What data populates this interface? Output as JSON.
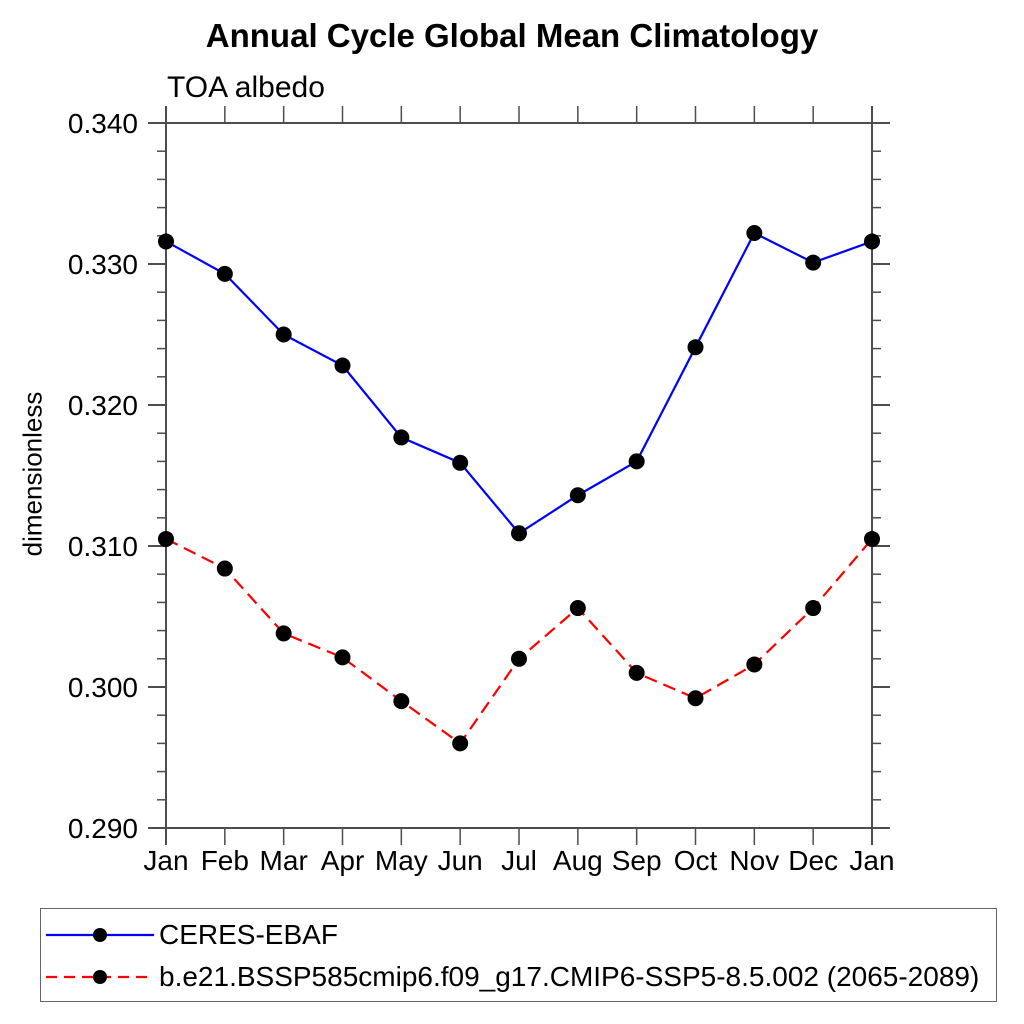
{
  "chart_data": {
    "type": "line",
    "title": "Annual Cycle Global Mean Climatology",
    "subtitle": "TOA albedo",
    "ylabel": "dimensionless",
    "xlabel": "",
    "categories": [
      "Jan",
      "Feb",
      "Mar",
      "Apr",
      "May",
      "Jun",
      "Jul",
      "Aug",
      "Sep",
      "Oct",
      "Nov",
      "Dec",
      "Jan"
    ],
    "ylim": [
      0.29,
      0.34
    ],
    "ytick_major": 0.01,
    "ytick_minor": 0.002,
    "ytick_labels": [
      "0.290",
      "0.300",
      "0.310",
      "0.320",
      "0.330",
      "0.340"
    ],
    "grid": false,
    "legend_position": "bottom",
    "marker": "filled-circle",
    "marker_color": "#000000",
    "series": [
      {
        "name": "CERES-EBAF",
        "color": "#0000ff",
        "line_style": "solid",
        "values": [
          0.3316,
          0.3293,
          0.325,
          0.3228,
          0.3177,
          0.3159,
          0.3109,
          0.3136,
          0.316,
          0.3241,
          0.3322,
          0.3301,
          0.3316
        ]
      },
      {
        "name": "b.e21.BSSP585cmip6.f09_g17.CMIP6-SSP5-8.5.002 (2065-2089)",
        "color": "#ff0000",
        "line_style": "dashed",
        "values": [
          0.3105,
          0.3084,
          0.3038,
          0.3021,
          0.299,
          0.296,
          0.302,
          0.3056,
          0.301,
          0.2992,
          0.3016,
          0.3056,
          0.3105
        ]
      }
    ]
  }
}
